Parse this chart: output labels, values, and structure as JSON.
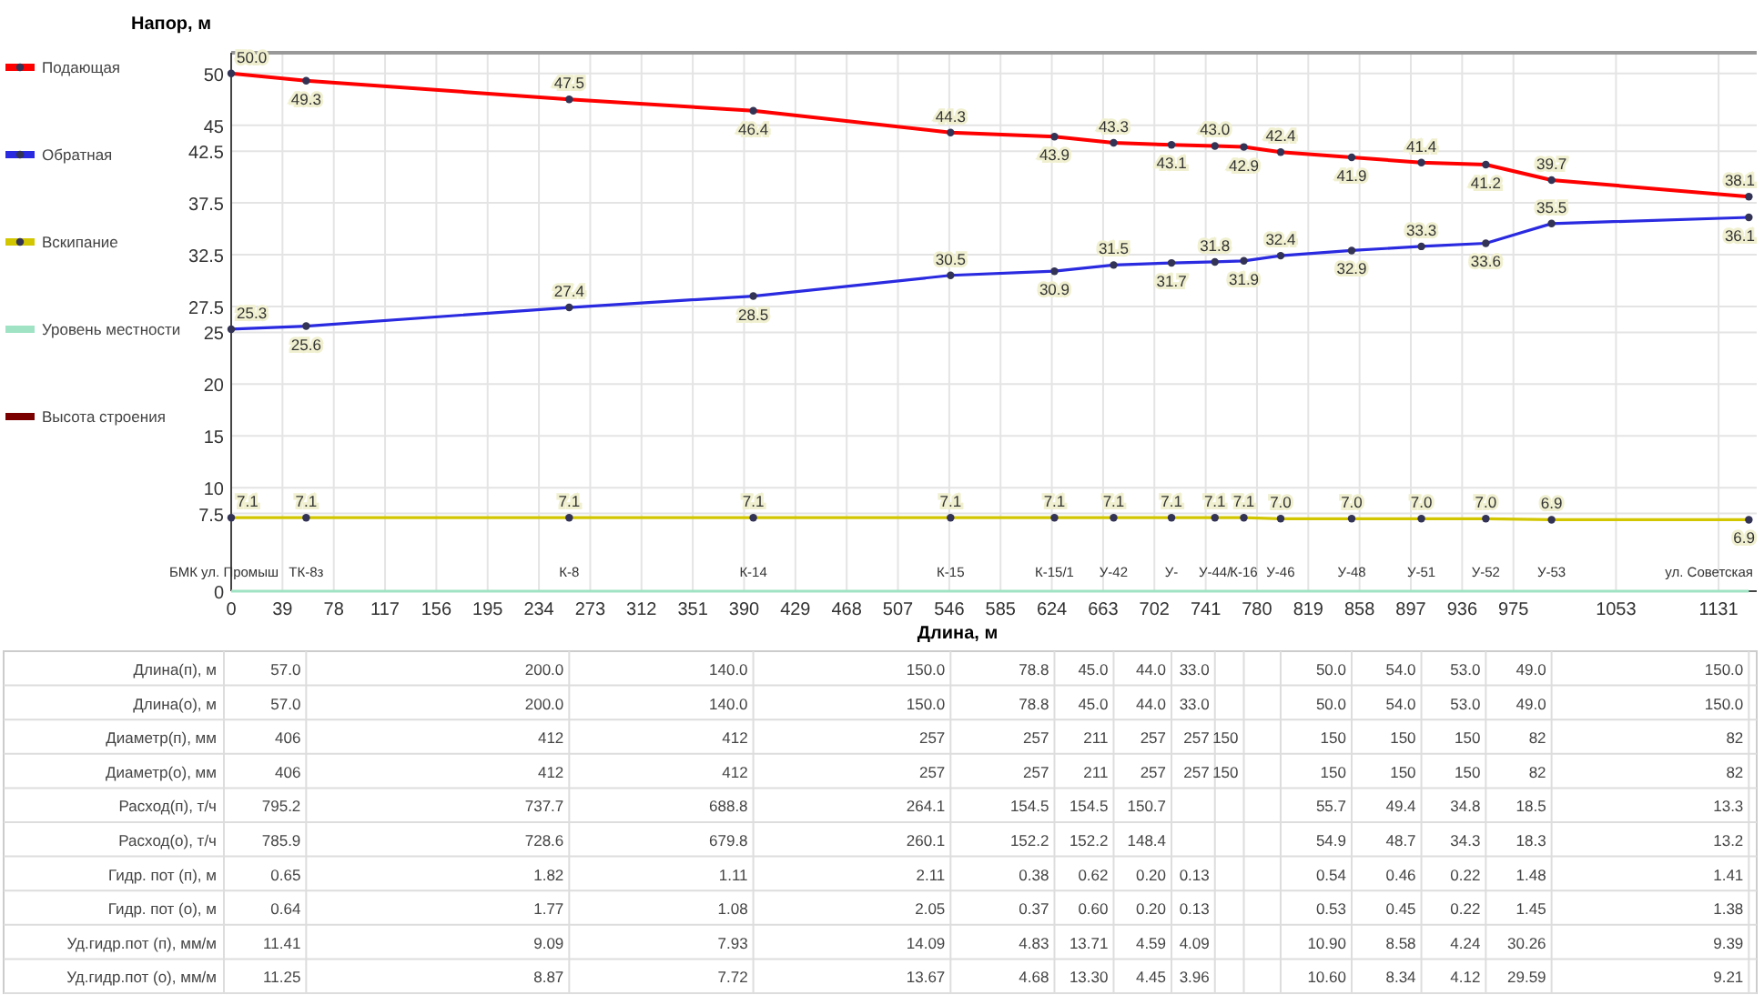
{
  "chart_data": [
    {
      "type": "line",
      "xlabel": "Длина, м",
      "ylabel": "Напор, м",
      "x": [
        0,
        57,
        257,
        397,
        547,
        626,
        671,
        715,
        748,
        770,
        798,
        852,
        905,
        954,
        1004,
        1154
      ],
      "series": [
        {
          "name": "Подающая",
          "color": "#ff0000",
          "marker": "circle",
          "values": [
            50.0,
            49.3,
            47.5,
            46.4,
            44.3,
            43.9,
            43.3,
            43.1,
            43.0,
            42.9,
            42.4,
            41.9,
            41.4,
            41.2,
            39.7,
            38.1
          ],
          "value_labels": [
            "50.0",
            "49.3",
            "47.5",
            "46.4",
            "44.3",
            "43.9",
            "43.3",
            "43.1",
            "43.0",
            "42.9",
            "42.4",
            "41.9",
            "41.4",
            "41.2",
            "39.7",
            "38.1"
          ]
        },
        {
          "name": "Обратная",
          "color": "#2a2ae0",
          "marker": "circle",
          "values": [
            25.3,
            25.6,
            27.4,
            28.5,
            30.5,
            30.9,
            31.5,
            31.7,
            31.8,
            31.9,
            32.4,
            32.9,
            33.3,
            33.6,
            35.5,
            36.1
          ],
          "value_labels": [
            "25.3",
            "25.6",
            "27.4",
            "28.5",
            "30.5",
            "30.9",
            "31.5",
            "31.7",
            "31.8",
            "31.9",
            "32.4",
            "32.9",
            "33.3",
            "33.6",
            "35.5",
            "36.1"
          ]
        },
        {
          "name": "Вскипание",
          "color": "#d2c600",
          "marker": "circle",
          "values": [
            7.1,
            7.1,
            7.1,
            7.1,
            7.1,
            7.1,
            7.1,
            7.1,
            7.1,
            7.1,
            7.0,
            7.0,
            7.0,
            7.0,
            6.9,
            6.9
          ],
          "value_labels": [
            "7.1",
            "7.1",
            "7.1",
            "7.1",
            "7.1",
            "7.1",
            "7.1",
            "7.1",
            "7.1",
            "7.1",
            "7.0",
            "7.0",
            "7.0",
            "7.0",
            "6.9",
            "6.9"
          ]
        },
        {
          "name": "Уровень местности",
          "color": "#9fe3c4",
          "marker": "none",
          "values": [
            0,
            0,
            0,
            0,
            0,
            0,
            0,
            0,
            0,
            0,
            0,
            0,
            0,
            0,
            0,
            0
          ]
        },
        {
          "name": "Высота строения",
          "color": "#7a0000",
          "marker": "none",
          "values": [
            null,
            null,
            null,
            null,
            null,
            null,
            null,
            null,
            null,
            null,
            null,
            null,
            null,
            null,
            null,
            null
          ]
        }
      ],
      "xlim": [
        0,
        1160
      ],
      "xticks": [
        0,
        39,
        78,
        117,
        156,
        195,
        234,
        273,
        312,
        351,
        390,
        429,
        468,
        507,
        546,
        585,
        624,
        663,
        702,
        741,
        780,
        819,
        858,
        897,
        936,
        975,
        1053,
        1131
      ],
      "ylim": [
        0,
        52
      ],
      "yticks": [
        0,
        7.5,
        10,
        15,
        20,
        25,
        27.5,
        32.5,
        37.5,
        42.5,
        45,
        50
      ],
      "grid": true,
      "legend": "left",
      "annotations": [
        {
          "text": "БМК ул. Промыш",
          "x": 0,
          "y": 0
        },
        {
          "text": "ТК-8з",
          "x": 57,
          "y": 0
        },
        {
          "text": "К-8",
          "x": 257,
          "y": 0
        },
        {
          "text": "К-14",
          "x": 397,
          "y": 0
        },
        {
          "text": "К-15",
          "x": 547,
          "y": 0
        },
        {
          "text": "К-15/1",
          "x": 626,
          "y": 0
        },
        {
          "text": "У-42",
          "x": 671,
          "y": 0
        },
        {
          "text": "У-",
          "x": 715,
          "y": 0
        },
        {
          "text": "У-44/",
          "x": 748,
          "y": 0
        },
        {
          "text": "К-16",
          "x": 770,
          "y": 0
        },
        {
          "text": "У-46",
          "x": 798,
          "y": 0
        },
        {
          "text": "У-48",
          "x": 852,
          "y": 0
        },
        {
          "text": "У-51",
          "x": 905,
          "y": 0
        },
        {
          "text": "У-52",
          "x": 954,
          "y": 0
        },
        {
          "text": "У-53",
          "x": 1004,
          "y": 0
        },
        {
          "text": "ул. Советская",
          "x": 1154,
          "y": 0
        }
      ]
    },
    {
      "type": "other",
      "y_categories": [
        "Длина(п), м",
        "Длина(о), м",
        "Диаметр(п), мм",
        "Диаметр(о), мм",
        "Расход(п), т/ч",
        "Расход(о), т/ч",
        "Гидр. пот (п), м",
        "Гидр. пот (о), м",
        "Уд.гидр.пот (п), мм/м",
        "Уд.гидр.пот (о), мм/м"
      ],
      "cell_labels": [
        [
          "57.0",
          "200.0",
          "140.0",
          "150.0",
          "78.8",
          "45.0",
          "44.0",
          "33.0",
          null,
          null,
          "50.0",
          "54.0",
          "53.0",
          "49.0",
          "150.0"
        ],
        [
          "57.0",
          "200.0",
          "140.0",
          "150.0",
          "78.8",
          "45.0",
          "44.0",
          "33.0",
          null,
          null,
          "50.0",
          "54.0",
          "53.0",
          "49.0",
          "150.0"
        ],
        [
          "406",
          "412",
          "412",
          "257",
          "257",
          "211",
          "257",
          "257",
          "150",
          null,
          "150",
          "150",
          "150",
          "82",
          "82"
        ],
        [
          "406",
          "412",
          "412",
          "257",
          "257",
          "211",
          "257",
          "257",
          "150",
          null,
          "150",
          "150",
          "150",
          "82",
          "82"
        ],
        [
          "795.2",
          "737.7",
          "688.8",
          "264.1",
          "154.5",
          "154.5",
          "150.7",
          null,
          null,
          null,
          "55.7",
          "49.4",
          "34.8",
          "18.5",
          "13.3"
        ],
        [
          "785.9",
          "728.6",
          "679.8",
          "260.1",
          "152.2",
          "152.2",
          "148.4",
          null,
          null,
          null,
          "54.9",
          "48.7",
          "34.3",
          "18.3",
          "13.2"
        ],
        [
          "0.65",
          "1.82",
          "1.11",
          "2.11",
          "0.38",
          "0.62",
          "0.20",
          "0.13",
          null,
          null,
          "0.54",
          "0.46",
          "0.22",
          "1.48",
          "1.41"
        ],
        [
          "0.64",
          "1.77",
          "1.08",
          "2.05",
          "0.37",
          "0.60",
          "0.20",
          "0.13",
          null,
          null,
          "0.53",
          "0.45",
          "0.22",
          "1.45",
          "1.38"
        ],
        [
          "11.41",
          "9.09",
          "7.93",
          "14.09",
          "4.83",
          "13.71",
          "4.59",
          "4.09",
          null,
          null,
          "10.90",
          "8.58",
          "4.24",
          "30.26",
          "9.39"
        ],
        [
          "11.25",
          "8.87",
          "7.72",
          "13.67",
          "4.68",
          "13.30",
          "4.45",
          "3.96",
          null,
          null,
          "10.60",
          "8.34",
          "4.12",
          "29.59",
          "9.21"
        ]
      ]
    }
  ]
}
